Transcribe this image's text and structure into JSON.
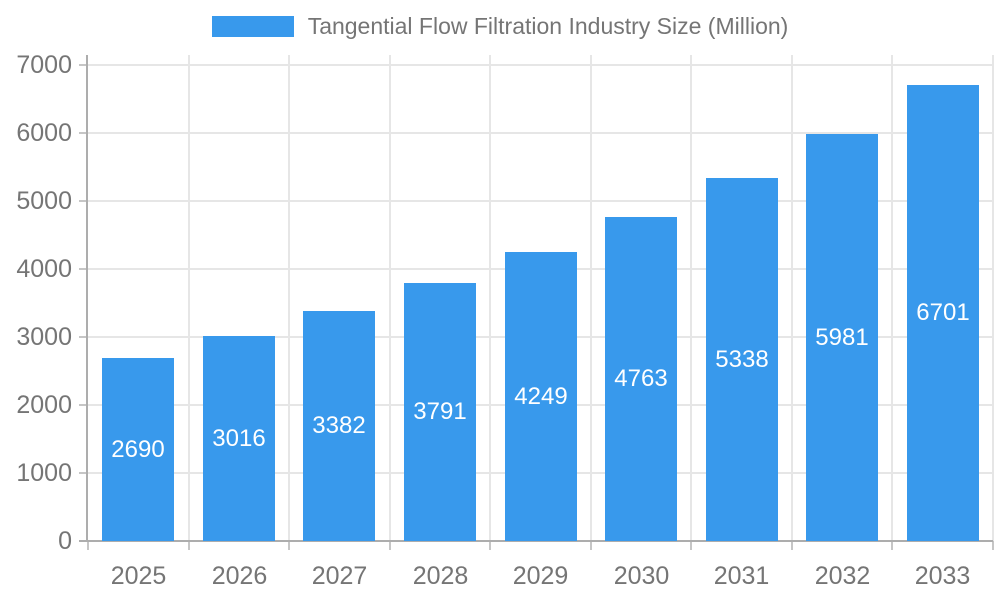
{
  "chart_data": {
    "type": "bar",
    "title": "Tangential Flow Filtration Industry Size (Million)",
    "categories": [
      "2025",
      "2026",
      "2027",
      "2028",
      "2029",
      "2030",
      "2031",
      "2032",
      "2033"
    ],
    "values": [
      2690,
      3016,
      3382,
      3791,
      4249,
      4763,
      5338,
      5981,
      6701
    ],
    "xlabel": "",
    "ylabel": "",
    "ylim": [
      0,
      7000
    ],
    "yticks": [
      0,
      1000,
      2000,
      3000,
      4000,
      5000,
      6000,
      7000
    ],
    "grid": true,
    "legend_position": "top",
    "bar_value_labels": "inside-center"
  },
  "colors": {
    "bar": "#3899EC",
    "bar_value_text": "#FFFFFF",
    "axis_text": "#757575",
    "legend_text": "#757575",
    "grid_line": "#E6E6E6",
    "axis_line": "#ADADAD",
    "tick_mark": "#C6C6C6",
    "background": "#FFFFFF"
  }
}
